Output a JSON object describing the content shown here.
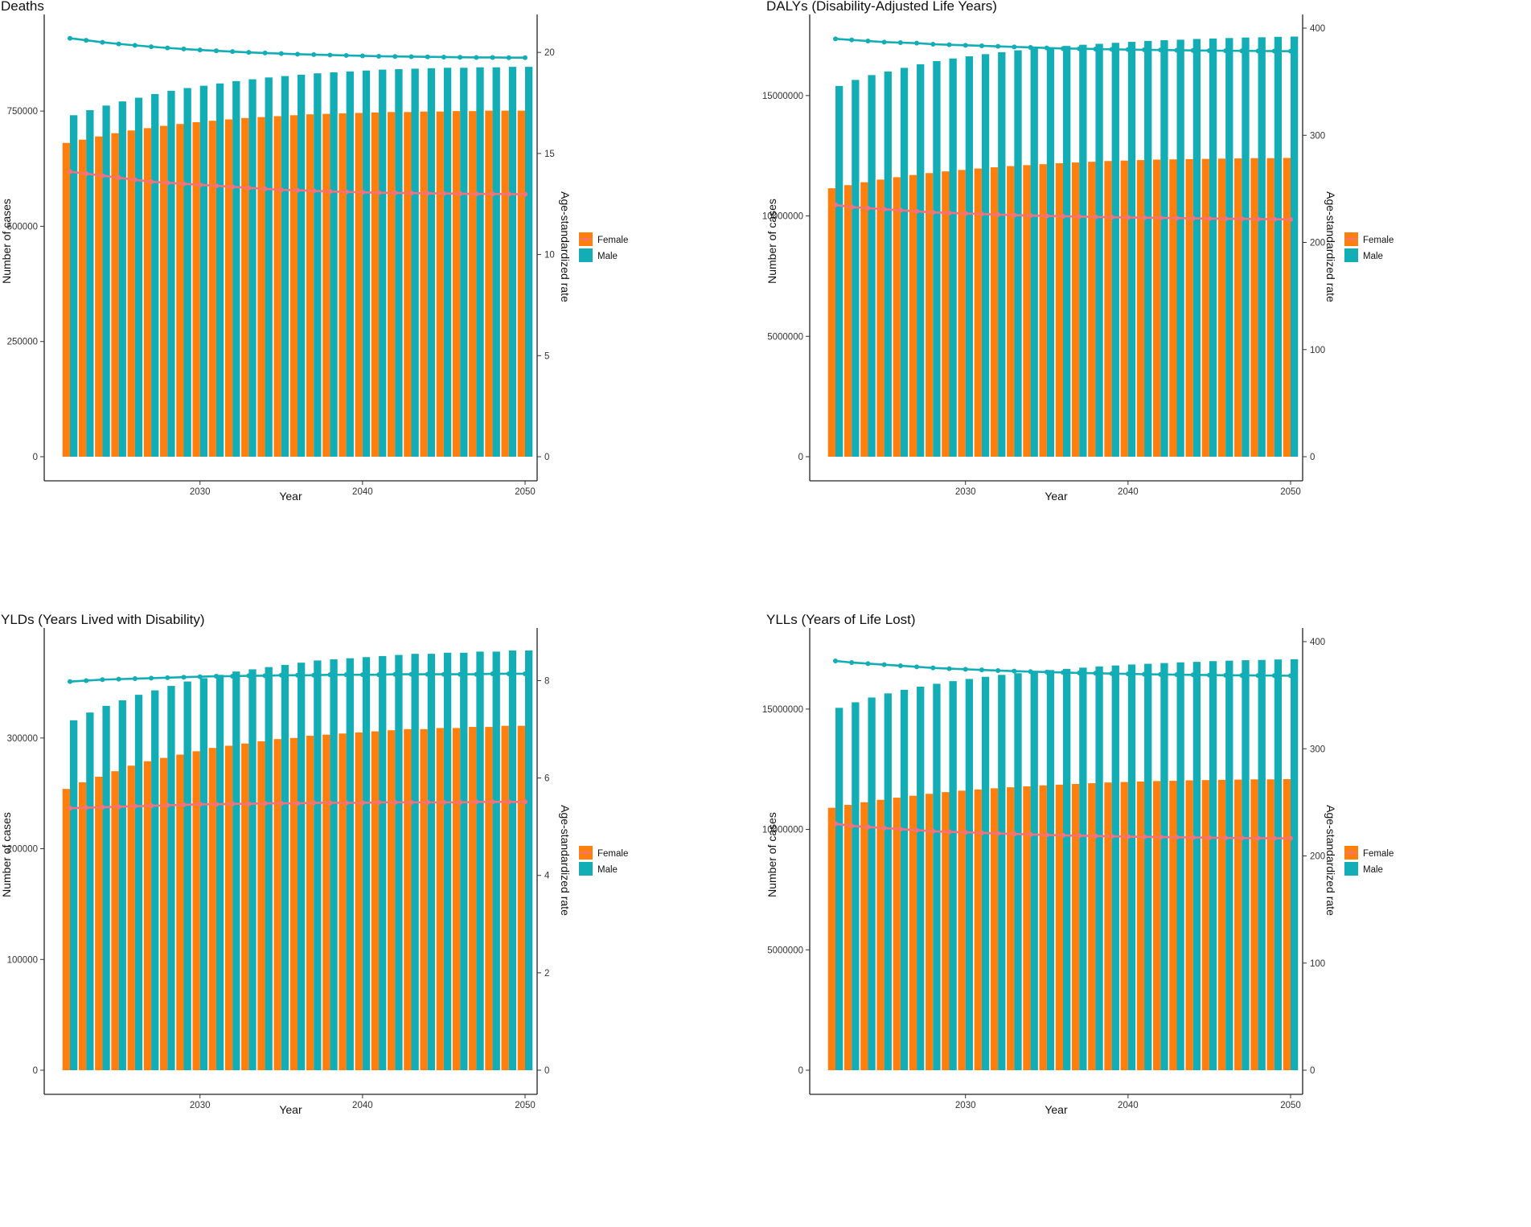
{
  "colors": {
    "female": "#FF7F0E",
    "male": "#12ADB5",
    "female_line": "#F5727A",
    "male_line": "#12ADB5"
  },
  "chart_data": [
    {
      "type": "bar",
      "title": "Deaths",
      "xlabel": "Year",
      "ylabel": "Number of cases",
      "y2label": "Age-standardized  rate",
      "x": [
        2022,
        2023,
        2024,
        2025,
        2026,
        2027,
        2028,
        2029,
        2030,
        2031,
        2032,
        2033,
        2034,
        2035,
        2036,
        2037,
        2038,
        2039,
        2040,
        2041,
        2042,
        2043,
        2044,
        2045,
        2046,
        2047,
        2048,
        2049,
        2050
      ],
      "xticks": [
        "2030",
        "2040",
        "2050"
      ],
      "ylim": [
        0,
        930000
      ],
      "yticks": [
        "0",
        "250000",
        "500000",
        "750000"
      ],
      "y2lim": [
        0,
        21.2
      ],
      "y2ticks": [
        "0",
        "5",
        "10",
        "15",
        "20"
      ],
      "legend": [
        "Female",
        "Male"
      ],
      "series": [
        {
          "name": "Female",
          "kind": "bar",
          "values": [
            681000,
            688000,
            695000,
            702000,
            708000,
            713000,
            718000,
            722000,
            726000,
            729000,
            732000,
            735000,
            737000,
            739000,
            741000,
            743000,
            744000,
            745000,
            746000,
            747000,
            748000,
            748000,
            749000,
            749000,
            750000,
            750000,
            751000,
            751000,
            751000
          ]
        },
        {
          "name": "Male",
          "kind": "bar",
          "values": [
            741000,
            752000,
            762000,
            771000,
            779000,
            787000,
            794000,
            800000,
            805000,
            810000,
            815000,
            819000,
            823000,
            826000,
            829000,
            832000,
            834000,
            836000,
            838000,
            840000,
            841000,
            842000,
            843000,
            844000,
            844000,
            845000,
            845000,
            846000,
            846000
          ]
        },
        {
          "name": "Female rate",
          "kind": "line",
          "values": [
            14.1,
            14.0,
            13.9,
            13.8,
            13.7,
            13.6,
            13.55,
            13.5,
            13.45,
            13.4,
            13.35,
            13.3,
            13.25,
            13.2,
            13.18,
            13.15,
            13.12,
            13.1,
            13.08,
            13.06,
            13.05,
            13.04,
            13.03,
            13.02,
            13.01,
            13.0,
            13.0,
            12.99,
            12.98
          ]
        },
        {
          "name": "Male rate",
          "kind": "line",
          "values": [
            20.7,
            20.6,
            20.5,
            20.42,
            20.35,
            20.28,
            20.22,
            20.17,
            20.12,
            20.08,
            20.04,
            20.0,
            19.97,
            19.94,
            19.91,
            19.89,
            19.87,
            19.85,
            19.83,
            19.81,
            19.8,
            19.79,
            19.78,
            19.77,
            19.76,
            19.75,
            19.75,
            19.74,
            19.74
          ]
        }
      ]
    },
    {
      "type": "bar",
      "title": "DALYs (Disability-Adjusted Life Years)",
      "xlabel": "Year",
      "ylabel": "Number of cases",
      "y2label": "Age-standardized  rate",
      "x": [
        2022,
        2023,
        2024,
        2025,
        2026,
        2027,
        2028,
        2029,
        2030,
        2031,
        2032,
        2033,
        2034,
        2035,
        2036,
        2037,
        2038,
        2039,
        2040,
        2041,
        2042,
        2043,
        2044,
        2045,
        2046,
        2047,
        2048,
        2049,
        2050
      ],
      "xticks": [
        "2030",
        "2040",
        "2050"
      ],
      "ylim": [
        0,
        17800000
      ],
      "yticks": [
        "0",
        "5000000",
        "10000000",
        "15000000"
      ],
      "y2lim": [
        0,
        400
      ],
      "y2ticks": [
        "0",
        "100",
        "200",
        "300",
        "400"
      ],
      "legend": [
        "Female",
        "Male"
      ],
      "series": [
        {
          "name": "Female",
          "kind": "bar",
          "values": [
            11150000,
            11280000,
            11400000,
            11510000,
            11610000,
            11700000,
            11780000,
            11850000,
            11910000,
            11970000,
            12020000,
            12070000,
            12110000,
            12150000,
            12190000,
            12220000,
            12250000,
            12280000,
            12300000,
            12320000,
            12340000,
            12350000,
            12360000,
            12370000,
            12380000,
            12390000,
            12400000,
            12400000,
            12410000
          ]
        },
        {
          "name": "Male",
          "kind": "bar",
          "values": [
            15400000,
            15650000,
            15850000,
            16000000,
            16150000,
            16300000,
            16430000,
            16540000,
            16630000,
            16720000,
            16800000,
            16880000,
            16950000,
            17000000,
            17060000,
            17110000,
            17150000,
            17190000,
            17230000,
            17270000,
            17300000,
            17320000,
            17350000,
            17370000,
            17390000,
            17410000,
            17420000,
            17440000,
            17450000
          ]
        },
        {
          "name": "Female rate",
          "kind": "line",
          "values": [
            235,
            233,
            232,
            231,
            230,
            229,
            228,
            227.5,
            227,
            226.5,
            226,
            225.5,
            225,
            224.7,
            224.4,
            224.1,
            223.8,
            223.5,
            223.3,
            223.1,
            222.9,
            222.7,
            222.5,
            222.3,
            222.1,
            222,
            221.8,
            221.6,
            221.5
          ]
        },
        {
          "name": "Male rate",
          "kind": "line",
          "values": [
            390,
            389,
            388,
            387,
            386.5,
            386,
            385,
            384.5,
            384,
            383.5,
            383,
            382.5,
            382,
            381.5,
            381,
            380.8,
            380.5,
            380.2,
            380,
            379.8,
            379.6,
            379.4,
            379.2,
            379,
            378.9,
            378.8,
            378.7,
            378.6,
            378.5
          ]
        }
      ]
    },
    {
      "type": "bar",
      "title": "YLDs (Years Lived with Disability)",
      "xlabel": "Year",
      "ylabel": "Number of cases",
      "y2label": "Age-standardized  rate",
      "x": [
        2022,
        2023,
        2024,
        2025,
        2026,
        2027,
        2028,
        2029,
        2030,
        2031,
        2032,
        2033,
        2034,
        2035,
        2036,
        2037,
        2038,
        2039,
        2040,
        2041,
        2042,
        2043,
        2044,
        2045,
        2046,
        2047,
        2048,
        2049,
        2050
      ],
      "xticks": [
        "2030",
        "2040",
        "2050"
      ],
      "ylim": [
        0,
        387000
      ],
      "yticks": [
        "0",
        "100000",
        "200000",
        "300000"
      ],
      "y2lim": [
        0,
        8.8
      ],
      "y2ticks": [
        "0",
        "2",
        "4",
        "6",
        "8"
      ],
      "legend": [
        "Female",
        "Male"
      ],
      "series": [
        {
          "name": "Female",
          "kind": "bar",
          "values": [
            254000,
            260000,
            265000,
            270000,
            275000,
            279000,
            282000,
            285000,
            288000,
            291000,
            293000,
            295000,
            297000,
            299000,
            300000,
            302000,
            303000,
            304000,
            305000,
            306000,
            307000,
            308000,
            308000,
            309000,
            309000,
            310000,
            310000,
            311000,
            311000
          ]
        },
        {
          "name": "Male",
          "kind": "bar",
          "values": [
            316000,
            323000,
            329000,
            334000,
            339000,
            343000,
            347000,
            351000,
            354000,
            357000,
            360000,
            362000,
            364000,
            366000,
            368000,
            370000,
            371000,
            372000,
            373000,
            374000,
            375000,
            376000,
            376000,
            377000,
            377000,
            378000,
            378000,
            379000,
            379000
          ]
        },
        {
          "name": "Female rate",
          "kind": "line",
          "values": [
            5.38,
            5.39,
            5.4,
            5.41,
            5.42,
            5.43,
            5.44,
            5.45,
            5.46,
            5.46,
            5.47,
            5.47,
            5.48,
            5.48,
            5.48,
            5.49,
            5.49,
            5.49,
            5.49,
            5.5,
            5.5,
            5.5,
            5.5,
            5.5,
            5.5,
            5.51,
            5.51,
            5.51,
            5.51
          ]
        },
        {
          "name": "Male rate",
          "kind": "line",
          "values": [
            7.98,
            8.0,
            8.02,
            8.03,
            8.04,
            8.05,
            8.06,
            8.07,
            8.08,
            8.09,
            8.09,
            8.1,
            8.1,
            8.11,
            8.11,
            8.11,
            8.12,
            8.12,
            8.12,
            8.12,
            8.13,
            8.13,
            8.13,
            8.13,
            8.13,
            8.13,
            8.14,
            8.14,
            8.14
          ]
        }
      ]
    },
    {
      "type": "bar",
      "title": "YLLs (Years of Life Lost)",
      "xlabel": "Year",
      "ylabel": "Number of cases",
      "y2label": "Age-standardized  rate",
      "x": [
        2022,
        2023,
        2024,
        2025,
        2026,
        2027,
        2028,
        2029,
        2030,
        2031,
        2032,
        2033,
        2034,
        2035,
        2036,
        2037,
        2038,
        2039,
        2040,
        2041,
        2042,
        2043,
        2044,
        2045,
        2046,
        2047,
        2048,
        2049,
        2050
      ],
      "xticks": [
        "2030",
        "2040",
        "2050"
      ],
      "ylim": [
        0,
        17800000
      ],
      "yticks": [
        "0",
        "5000000",
        "10000000",
        "15000000"
      ],
      "y2lim": [
        0,
        400
      ],
      "y2ticks": [
        "0",
        "100",
        "200",
        "300",
        "400"
      ],
      "legend": [
        "Female",
        "Male"
      ],
      "series": [
        {
          "name": "Female",
          "kind": "bar",
          "values": [
            10900000,
            11020000,
            11130000,
            11230000,
            11320000,
            11400000,
            11480000,
            11550000,
            11610000,
            11660000,
            11710000,
            11750000,
            11790000,
            11830000,
            11860000,
            11890000,
            11920000,
            11950000,
            11970000,
            11990000,
            12010000,
            12020000,
            12040000,
            12050000,
            12060000,
            12070000,
            12080000,
            12080000,
            12090000
          ]
        },
        {
          "name": "Male",
          "kind": "bar",
          "values": [
            15050000,
            15280000,
            15480000,
            15650000,
            15800000,
            15930000,
            16050000,
            16160000,
            16250000,
            16340000,
            16420000,
            16490000,
            16560000,
            16620000,
            16670000,
            16720000,
            16770000,
            16810000,
            16850000,
            16880000,
            16910000,
            16940000,
            16960000,
            16990000,
            17010000,
            17030000,
            17040000,
            17060000,
            17070000
          ]
        },
        {
          "name": "Female rate",
          "kind": "line",
          "values": [
            230,
            228,
            227,
            226,
            225,
            224,
            223,
            222.5,
            222,
            221.5,
            221,
            220.5,
            220,
            219.6,
            219.2,
            218.9,
            218.6,
            218.3,
            218,
            217.8,
            217.6,
            217.4,
            217.2,
            217,
            216.8,
            216.7,
            216.6,
            216.5,
            216.4
          ]
        },
        {
          "name": "Male rate",
          "kind": "line",
          "values": [
            382,
            380.5,
            379.5,
            378.5,
            377.5,
            376.5,
            375.5,
            374.8,
            374.2,
            373.6,
            373,
            372.5,
            372,
            371.6,
            371.2,
            370.8,
            370.5,
            370.2,
            369.9,
            369.6,
            369.4,
            369.2,
            369,
            368.8,
            368.6,
            368.5,
            368.4,
            368.3,
            368.2
          ]
        }
      ]
    }
  ]
}
